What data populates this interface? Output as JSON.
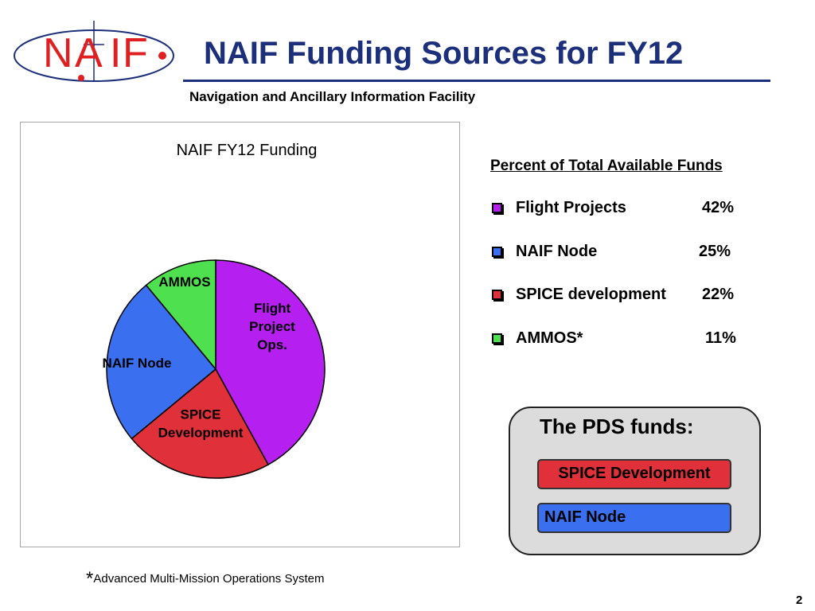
{
  "slide": {
    "title": "NAIF Funding Sources for FY12",
    "subtitle": "Navigation and Ancillary Information Facility",
    "page_number": "2"
  },
  "logo": {
    "letters": [
      "N",
      "A",
      "I",
      "F"
    ],
    "color": "#e02020",
    "orbit_color": "#1c2f7a"
  },
  "chart_data": {
    "type": "pie",
    "title": "NAIF FY12 Funding",
    "start_angle_deg": 0,
    "direction": "clockwise",
    "slices": [
      {
        "label": [
          "Flight",
          "Project",
          "Ops."
        ],
        "value": 42,
        "color": "#b520f0"
      },
      {
        "label": [
          "SPICE",
          "Development"
        ],
        "value": 22,
        "color": "#e0303a"
      },
      {
        "label": [
          "NAIF Node"
        ],
        "value": 25,
        "color": "#3a6ff0"
      },
      {
        "label": [
          "AMMOS"
        ],
        "value": 11,
        "color": "#4ee04e"
      }
    ]
  },
  "legend": {
    "heading": "Percent of Total Available Funds",
    "items": [
      {
        "name": "Flight Projects",
        "percent": "42%",
        "color": "#b520f0"
      },
      {
        "name": "NAIF Node",
        "percent": "25%",
        "color": "#3a6ff0"
      },
      {
        "name": "SPICE development",
        "percent": "22%",
        "color": "#e0303a"
      },
      {
        "name": "AMMOS*",
        "percent": "11%",
        "color": "#4ee04e"
      }
    ]
  },
  "pds": {
    "title": "The PDS funds:",
    "items": [
      "SPICE Development",
      "NAIF Node"
    ]
  },
  "footnote": {
    "marker": "*",
    "text": "Advanced Multi-Mission Operations System"
  }
}
